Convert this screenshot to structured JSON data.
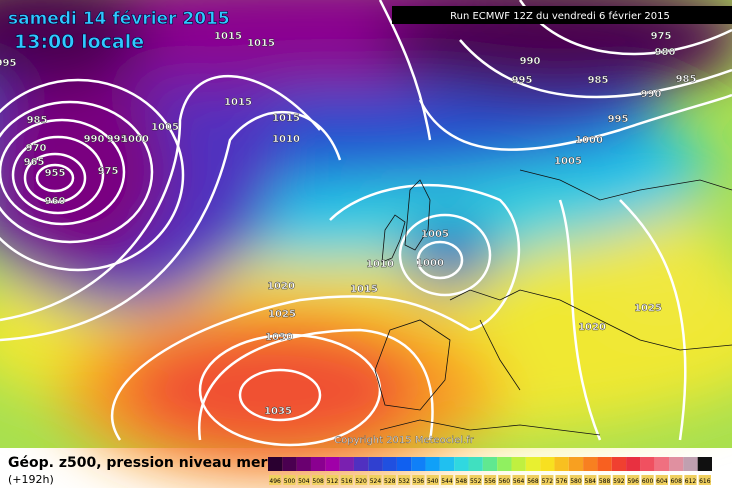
{
  "header": {
    "date": "samedi 14 février 2015",
    "time": "13:00 locale",
    "run": "Run ECMWF 12Z du vendredi 6 février 2015"
  },
  "copyright": "Copyright 2015 Meteociel.fr",
  "legend": {
    "title": "Géop. z500, pression niveau mer",
    "lead": "(+192h)",
    "scale_values": [
      496,
      500,
      504,
      508,
      512,
      516,
      520,
      524,
      528,
      532,
      536,
      540,
      544,
      548,
      552,
      556,
      560,
      564,
      568,
      572,
      576,
      580,
      584,
      588,
      592,
      596,
      600,
      604,
      608,
      612,
      616
    ],
    "scale_colors": [
      "#2a0030",
      "#4a0050",
      "#6a0070",
      "#8a0090",
      "#a000a8",
      "#7a20b0",
      "#5030c0",
      "#3040d0",
      "#2050e0",
      "#1060f0",
      "#1080f8",
      "#10a0f8",
      "#20c0f0",
      "#30d8e0",
      "#40e0c0",
      "#60e890",
      "#90f060",
      "#c0f040",
      "#e8f030",
      "#f8e020",
      "#f8c020",
      "#f8a020",
      "#f88020",
      "#f86020",
      "#f04030",
      "#e83040",
      "#f05060",
      "#f07080",
      "#e090a0",
      "#c0a0b0",
      "#101010"
    ]
  },
  "isobar_labels": [
    "1015",
    "1015",
    "995",
    "1015",
    "1005",
    "1015",
    "1010",
    "985",
    "990",
    "995",
    "1000",
    "970",
    "965",
    "955",
    "960",
    "975",
    "990",
    "995",
    "975",
    "980",
    "985",
    "985",
    "990",
    "995",
    "1000",
    "1005",
    "1005",
    "1000",
    "1010",
    "1015",
    "1020",
    "1025",
    "1030",
    "1035",
    "1025",
    "1020"
  ]
}
